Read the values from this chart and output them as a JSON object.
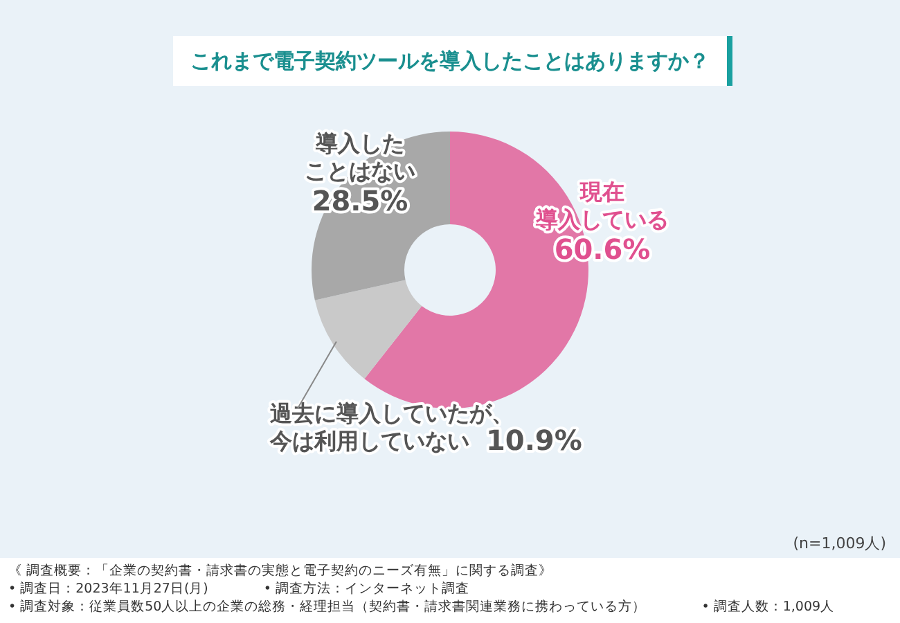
{
  "chart_data": {
    "type": "donut",
    "title": "これまで電子契約ツールを導入したことはありますか？",
    "categories": [
      "現在導入している",
      "過去に導入していたが、今は利用していない",
      "導入したことはない"
    ],
    "values": [
      60.6,
      10.9,
      28.5
    ],
    "colors": [
      "#e277a7",
      "#c9c9c9",
      "#a8a8a8"
    ],
    "value_labels": [
      "60.6%",
      "10.9%",
      "28.5%"
    ],
    "legend": false,
    "annotations": [
      "(n=1,009人)",
      "《 調査概要：「企業の契約書・請求書の実態と電子契約のニーズ有無」に関する調査》",
      "• 調査日：2023年11月27日(月)",
      "• 調査方法：インターネット調査",
      "• 調査対象：従業員数50人以上の企業の総務・経理担当（契約書・請求書関連業務に携わっている方）",
      "• 調査人数：1,009人"
    ]
  }
}
